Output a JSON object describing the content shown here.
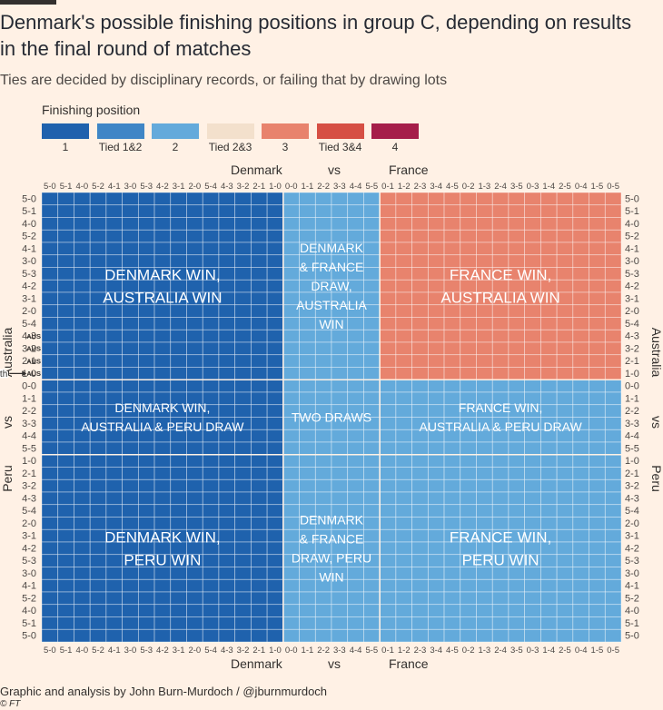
{
  "title": "Denmark's possible finishing positions in group C, depending on results in the final round of matches",
  "subtitle": "Ties are decided by disciplinary records, or failing that by drawing lots",
  "legend_title": "Finishing position",
  "legend": [
    {
      "label": "1",
      "color": "#1f62ad"
    },
    {
      "label": "Tied 1&2",
      "color": "#3f86c6"
    },
    {
      "label": "2",
      "color": "#63aadb"
    },
    {
      "label": "Tied 2&3",
      "color": "#f3e0cc"
    },
    {
      "label": "3",
      "color": "#e8836d"
    },
    {
      "label": "Tied 3&4",
      "color": "#d64f44"
    },
    {
      "label": "4",
      "color": "#a51e4a"
    }
  ],
  "x_axis": {
    "team1": "Denmark",
    "vs": "vs",
    "team2": "France"
  },
  "y_axis": {
    "team1": "Australia",
    "vs": "vs",
    "team2": "Peru"
  },
  "footer": "Graphic and analysis by John Burn-Murdoch / @jburnmurdoch",
  "footer_ft": "© FT",
  "chart_data": {
    "type": "heatmap",
    "x_labels": [
      "5-0",
      "5-1",
      "4-0",
      "5-2",
      "4-1",
      "3-0",
      "5-3",
      "4-2",
      "3-1",
      "2-0",
      "5-4",
      "4-3",
      "3-2",
      "2-1",
      "1-0",
      "0-0",
      "1-1",
      "2-2",
      "3-3",
      "4-4",
      "5-5",
      "0-1",
      "1-2",
      "2-3",
      "3-4",
      "4-5",
      "0-2",
      "1-3",
      "2-4",
      "3-5",
      "0-3",
      "1-4",
      "2-5",
      "0-4",
      "1-5",
      "0-5"
    ],
    "y_labels": [
      "5-0",
      "5-1",
      "4-0",
      "5-2",
      "4-1",
      "3-0",
      "5-3",
      "4-2",
      "3-1",
      "2-0",
      "5-4",
      "4-3",
      "3-2",
      "2-1",
      "1-0",
      "0-0",
      "1-1",
      "2-2",
      "3-3",
      "4-4",
      "5-5",
      "1-0",
      "2-1",
      "3-2",
      "4-3",
      "5-4",
      "2-0",
      "3-1",
      "4-2",
      "5-3",
      "3-0",
      "4-1",
      "5-2",
      "4-0",
      "5-1",
      "5-0"
    ],
    "x_groups": [
      15,
      6,
      15
    ],
    "y_groups": [
      15,
      6,
      15
    ],
    "region_positions": [
      [
        "1",
        "2",
        "3"
      ],
      [
        "1",
        "2",
        "2"
      ],
      [
        "1",
        "2",
        "2"
      ]
    ],
    "regions": [
      {
        "row": 0,
        "col": 0,
        "label": "DENMARK WIN,\nAUSTRALIA WIN",
        "size": "large"
      },
      {
        "row": 0,
        "col": 1,
        "label": "DENMARK\n& FRANCE\nDRAW,\nAUSTRALIA\nWIN",
        "size": "small"
      },
      {
        "row": 0,
        "col": 2,
        "label": "FRANCE WIN,\nAUSTRALIA WIN",
        "size": "large"
      },
      {
        "row": 1,
        "col": 0,
        "label": "DENMARK WIN,\nAUSTRALIA & PERU DRAW",
        "size": "small"
      },
      {
        "row": 1,
        "col": 1,
        "label": "TWO DRAWS",
        "size": "small"
      },
      {
        "row": 1,
        "col": 2,
        "label": "FRANCE WIN,\nAUSTRALIA & PERU DRAW",
        "size": "small"
      },
      {
        "row": 2,
        "col": 0,
        "label": "DENMARK WIN,\nPERU WIN",
        "size": "large"
      },
      {
        "row": 2,
        "col": 1,
        "label": "DENMARK\n& FRANCE\nDRAW, PERU\nWIN",
        "size": "small"
      },
      {
        "row": 2,
        "col": 2,
        "label": "FRANCE WIN,\nPERU WIN",
        "size": "large"
      }
    ],
    "tie_cells": [
      {
        "x": "1-0",
        "y": "1-0",
        "position": "Tied 2&3",
        "label": "AUS"
      },
      {
        "x": "2-1",
        "y": "2-1",
        "position": "Tied 2&3",
        "label": "AUS"
      },
      {
        "x": "2-0",
        "y": "2-0",
        "position": "Tied 2&3"
      },
      {
        "x": "3-2",
        "y": "3-2",
        "position": "Tied 2&3",
        "label": "AUS"
      },
      {
        "x": "3-1",
        "y": "3-1",
        "position": "Tied 2&3"
      },
      {
        "x": "4-3",
        "y": "4-3",
        "position": "Tied 2&3",
        "label": "AUS"
      },
      {
        "x": "4-2",
        "y": "4-2",
        "position": "Tied 2&3"
      }
    ],
    "annotation": {
      "text": "Tied with",
      "x": "1-0",
      "y": "1-0"
    },
    "region_ranges": {
      "rows": [
        [
          "5-0",
          "1-0"
        ],
        [
          "0-0",
          "5-5"
        ],
        [
          "1-0",
          "5-0"
        ]
      ],
      "cols": [
        [
          "5-0",
          "1-0"
        ],
        [
          "0-0",
          "5-5"
        ],
        [
          "0-1",
          "0-5"
        ]
      ]
    },
    "grid": true
  }
}
